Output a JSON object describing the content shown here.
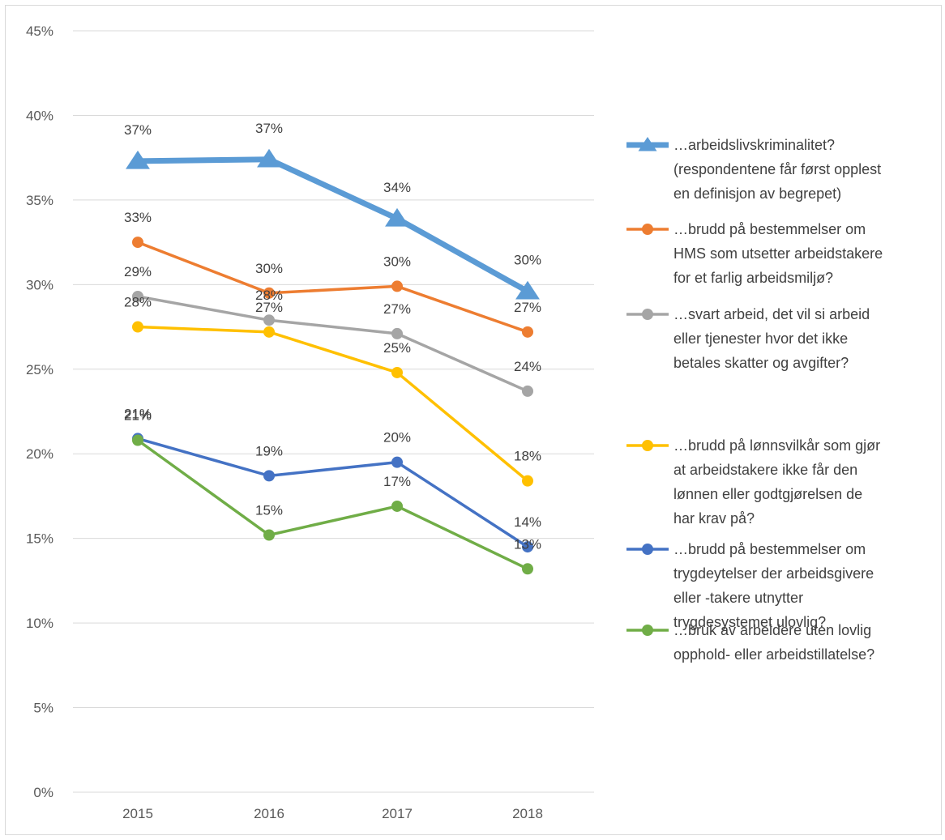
{
  "chart_data": {
    "type": "line",
    "title": "",
    "xlabel": "",
    "ylabel": "",
    "x": [
      "2015",
      "2016",
      "2017",
      "2018"
    ],
    "ylim": [
      0,
      45
    ],
    "yticks": [
      "0%",
      "5%",
      "10%",
      "15%",
      "20%",
      "25%",
      "30%",
      "35%",
      "40%",
      "45%"
    ],
    "grid": true,
    "legend_position": "right",
    "series": [
      {
        "name_lines": [
          "…arbeidslivskriminalitet?",
          "(respondentene får først opplest",
          "en definisjon av begrepet)"
        ],
        "values": [
          37.3,
          37.4,
          33.9,
          29.6
        ],
        "labels": [
          "37%",
          "37%",
          "34%",
          "30%"
        ],
        "color": "#5B9BD5",
        "marker": "triangle"
      },
      {
        "name_lines": [
          "…brudd på bestemmelser om",
          "HMS som utsetter arbeidstakere",
          "for et farlig arbeidsmiljø?"
        ],
        "values": [
          32.5,
          29.5,
          29.9,
          27.2
        ],
        "labels": [
          "33%",
          "30%",
          "30%",
          "27%"
        ],
        "color": "#ED7D31",
        "marker": "circle"
      },
      {
        "name_lines": [
          "…svart arbeid, det vil si arbeid",
          "eller tjenester hvor det ikke",
          "betales skatter og avgifter?"
        ],
        "values": [
          29.3,
          27.9,
          27.1,
          23.7
        ],
        "labels": [
          "29%",
          "28%",
          "27%",
          "24%"
        ],
        "color": "#A5A5A5",
        "marker": "circle"
      },
      {
        "name_lines": [
          "…brudd på lønnsvilkår som gjør",
          "at arbeidstakere ikke får den",
          "lønnen eller godtgjørelsen de",
          "har krav på?"
        ],
        "values": [
          27.5,
          27.2,
          24.8,
          18.4
        ],
        "labels": [
          "28%",
          "27%",
          "25%",
          "18%"
        ],
        "color": "#FFC000",
        "marker": "circle"
      },
      {
        "name_lines": [
          "…brudd på bestemmelser om",
          "trygdeytelser der arbeidsgivere",
          "eller -takere utnytter",
          "trygdesystemet ulovlig?"
        ],
        "values": [
          20.9,
          18.7,
          19.5,
          14.5
        ],
        "labels": [
          "21%",
          "19%",
          "20%",
          "14%"
        ],
        "color": "#4472C4",
        "marker": "circle"
      },
      {
        "name_lines": [
          "…bruk av arbeidere uten lovlig",
          "opphold- eller arbeidstillatelse?"
        ],
        "values": [
          20.8,
          15.2,
          16.9,
          13.2
        ],
        "labels": [
          "21%",
          "15%",
          "17%",
          "13%"
        ],
        "color": "#70AD47",
        "marker": "circle"
      }
    ]
  }
}
